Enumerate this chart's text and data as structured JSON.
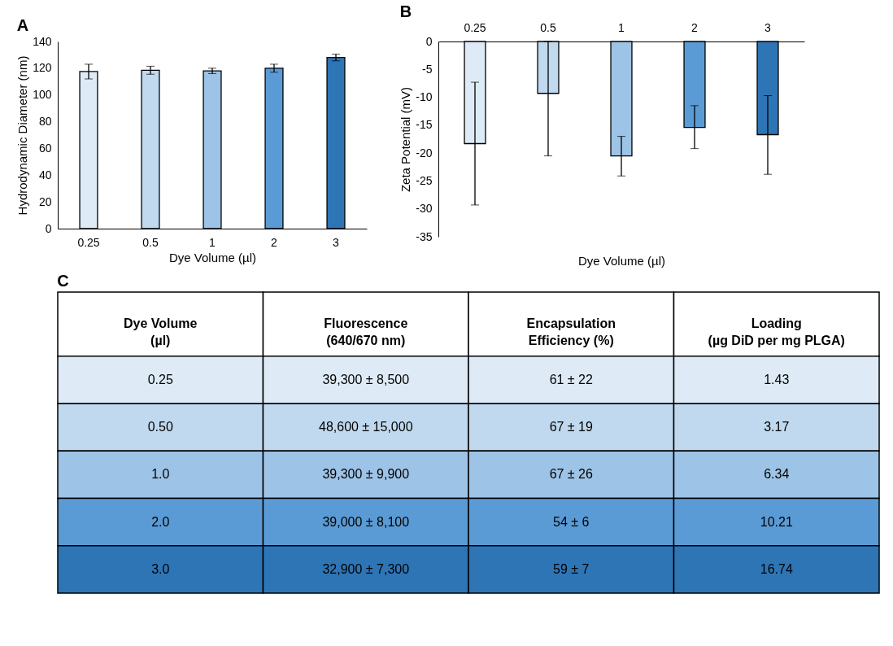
{
  "chart_data": [
    {
      "type": "bar",
      "title": "A",
      "xlabel": "Dye Volume (µl)",
      "ylabel": "Hydrodynamic Diameter (nm)",
      "categories": [
        "0.25",
        "0.5",
        "1",
        "2",
        "3"
      ],
      "values": [
        117.5,
        118.5,
        118,
        120,
        128
      ],
      "errors": [
        5.5,
        3,
        2,
        3,
        2.5
      ],
      "colors": [
        "#deebf7",
        "#c0d9ef",
        "#9dc3e6",
        "#5b9bd5",
        "#2e75b6"
      ],
      "ylim": [
        0,
        140
      ],
      "yticks": [
        0,
        20,
        40,
        60,
        80,
        100,
        120,
        140
      ],
      "grid": false
    },
    {
      "type": "bar",
      "title": "B",
      "xlabel": "Dye Volume (µl)",
      "ylabel": "Zeta Potential (mV)",
      "categories": [
        "0.25",
        "0.5",
        "1",
        "2",
        "3"
      ],
      "values": [
        -18.3,
        -9.3,
        -20.5,
        -15.4,
        -16.7
      ],
      "errors": [
        11,
        [
          -20.5,
          0
        ],
        [
          -24.1,
          -17
        ],
        [
          -19.2,
          -11.5
        ],
        [
          -23.8,
          -9.7
        ]
      ],
      "colors": [
        "#deebf7",
        "#c0d9ef",
        "#9dc3e6",
        "#5b9bd5",
        "#2e75b6"
      ],
      "ylim": [
        -35,
        0
      ],
      "yticks": [
        -35,
        -30,
        -25,
        -20,
        -15,
        -10,
        -5,
        0
      ],
      "grid": false
    },
    {
      "type": "other",
      "title": "C",
      "ylabel": "Dye Volume\n(µl)",
      "categories": [
        "0.25",
        "0.50",
        "1.0",
        "2.0",
        "3.0"
      ],
      "annotations": [
        "Fluorescence\n(640/670 nm)",
        "Encapsulation\nEfficiency (%)",
        "Loading\n(µg DiD per mg PLGA)",
        "39,300 ± 8,500",
        "61 ± 22",
        "1.43",
        "48,600 ± 15,000",
        "67 ± 19",
        "3.17",
        "39,300 ± 9,900",
        "67 ± 26",
        "6.34",
        "39,000 ± 8,100",
        "54 ± 6",
        "10.21",
        "32,900 ± 7,300",
        "59 ± 7",
        "16.74"
      ],
      "colors": [
        "#deebf7",
        "#c0d9ef",
        "#9dc3e6",
        "#5b9bd5",
        "#2e75b6"
      ]
    }
  ]
}
